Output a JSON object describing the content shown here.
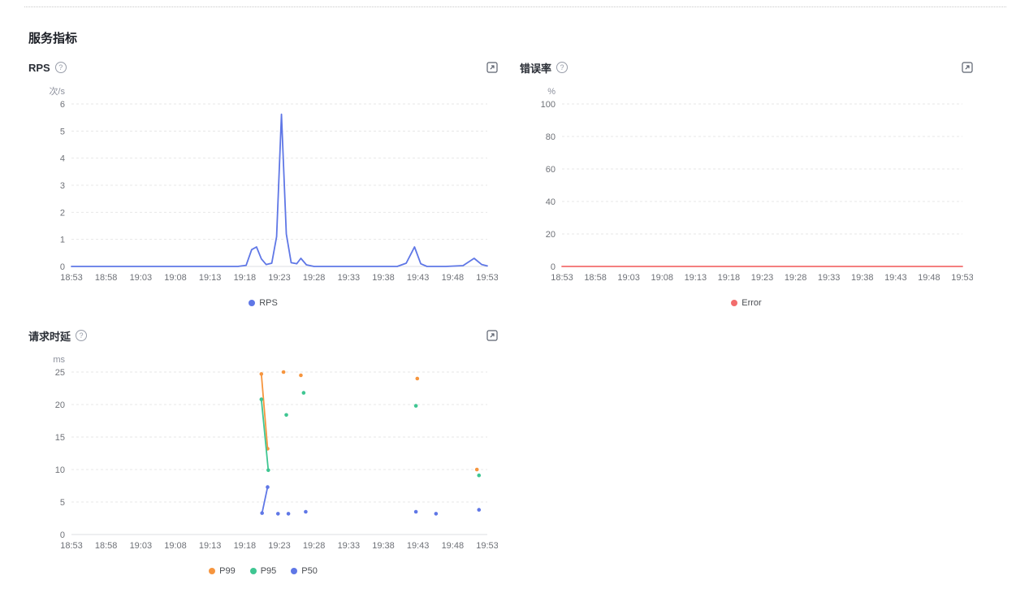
{
  "section": {
    "title": "服务指标"
  },
  "icons": {
    "help_glyph": "?"
  },
  "panels": [
    {
      "id": "rps",
      "title": "RPS"
    },
    {
      "id": "error-rate",
      "title": "错误率"
    },
    {
      "id": "latency",
      "title": "请求时延"
    }
  ],
  "chart_data": [
    {
      "type": "line",
      "title": "RPS",
      "unit": "次/s",
      "x_encoding": "minutes after 18:53",
      "xlim": [
        0,
        60
      ],
      "ylim": [
        0,
        6
      ],
      "yticks": [
        0,
        1,
        2,
        3,
        4,
        5,
        6
      ],
      "xticks": [
        "18:53",
        "18:58",
        "19:03",
        "19:08",
        "19:13",
        "19:18",
        "19:23",
        "19:28",
        "19:33",
        "19:38",
        "19:43",
        "19:48",
        "19:53"
      ],
      "grid": "dashed-horizontal",
      "legend_position": "bottom",
      "series": [
        {
          "name": "RPS",
          "color": "#5f77e6",
          "symbols": false,
          "groups": [
            [
              [
                0,
                0
              ],
              [
                3,
                0
              ],
              [
                6,
                0
              ],
              [
                9,
                0
              ],
              [
                12,
                0
              ],
              [
                15,
                0
              ],
              [
                18,
                0
              ],
              [
                21,
                0
              ],
              [
                24,
                0
              ],
              [
                25.2,
                0.04
              ],
              [
                26,
                0.62
              ],
              [
                26.7,
                0.72
              ],
              [
                27.4,
                0.28
              ],
              [
                28.1,
                0.07
              ],
              [
                28.9,
                0.12
              ],
              [
                29.6,
                1.1
              ],
              [
                30.3,
                5.62
              ],
              [
                31,
                1.2
              ],
              [
                31.7,
                0.14
              ],
              [
                32.5,
                0.1
              ],
              [
                33.1,
                0.3
              ],
              [
                33.9,
                0.06
              ],
              [
                35,
                0
              ],
              [
                38,
                0
              ],
              [
                41,
                0
              ],
              [
                44,
                0
              ],
              [
                47,
                0
              ],
              [
                48.3,
                0.12
              ],
              [
                49.5,
                0.72
              ],
              [
                50.4,
                0.1
              ],
              [
                51.3,
                0
              ],
              [
                54,
                0
              ],
              [
                56.5,
                0.03
              ],
              [
                58.1,
                0.3
              ],
              [
                59.2,
                0.07
              ],
              [
                60,
                0.02
              ]
            ]
          ]
        }
      ]
    },
    {
      "type": "line",
      "title": "错误率",
      "unit": "%",
      "x_encoding": "minutes after 18:53",
      "xlim": [
        0,
        60
      ],
      "ylim": [
        0,
        100
      ],
      "yticks": [
        0,
        20,
        40,
        60,
        80,
        100
      ],
      "xticks": [
        "18:53",
        "18:58",
        "19:03",
        "19:08",
        "19:13",
        "19:18",
        "19:23",
        "19:28",
        "19:33",
        "19:38",
        "19:43",
        "19:48",
        "19:53"
      ],
      "grid": "dashed-horizontal",
      "legend_position": "bottom",
      "series": [
        {
          "name": "Error",
          "color": "#f26d6d",
          "symbols": false,
          "groups": [
            [
              [
                0,
                0
              ],
              [
                60,
                0
              ]
            ]
          ]
        }
      ]
    },
    {
      "type": "scatter-line",
      "title": "请求时延",
      "unit": "ms",
      "x_encoding": "minutes after 18:53",
      "xlim": [
        0,
        60
      ],
      "ylim": [
        0,
        25
      ],
      "yticks": [
        0,
        5,
        10,
        15,
        20,
        25
      ],
      "xticks": [
        "18:53",
        "18:58",
        "19:03",
        "19:08",
        "19:13",
        "19:18",
        "19:23",
        "19:28",
        "19:33",
        "19:38",
        "19:43",
        "19:48",
        "19:53"
      ],
      "grid": "dashed-horizontal",
      "legend_position": "bottom",
      "series": [
        {
          "name": "P99",
          "color": "#f6953e",
          "symbols": true,
          "groups": [
            [
              [
                27.4,
                24.7
              ],
              [
                28.3,
                13.2
              ]
            ],
            [
              [
                30.6,
                25
              ]
            ],
            [
              [
                33.1,
                24.5
              ]
            ],
            [
              [
                49.9,
                24
              ]
            ],
            [
              [
                58.5,
                10
              ]
            ]
          ]
        },
        {
          "name": "P95",
          "color": "#3fc692",
          "symbols": true,
          "groups": [
            [
              [
                27.4,
                20.8
              ],
              [
                28.4,
                9.9
              ]
            ],
            [
              [
                31,
                18.4
              ]
            ],
            [
              [
                33.5,
                21.8
              ]
            ],
            [
              [
                49.7,
                19.8
              ]
            ],
            [
              [
                58.8,
                9.1
              ]
            ]
          ]
        },
        {
          "name": "P50",
          "color": "#5f77e6",
          "symbols": true,
          "groups": [
            [
              [
                27.5,
                3.3
              ],
              [
                28.3,
                7.3
              ]
            ],
            [
              [
                29.8,
                3.2
              ]
            ],
            [
              [
                31.3,
                3.2
              ]
            ],
            [
              [
                33.8,
                3.5
              ]
            ],
            [
              [
                49.7,
                3.5
              ]
            ],
            [
              [
                52.6,
                3.2
              ]
            ],
            [
              [
                58.8,
                3.8
              ]
            ]
          ]
        }
      ]
    }
  ]
}
